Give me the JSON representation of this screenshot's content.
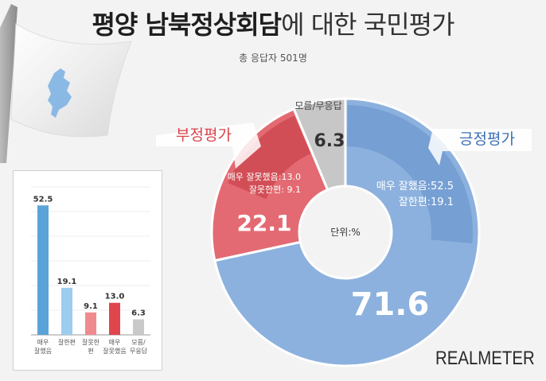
{
  "title": {
    "bold": "평양 남북정상회담",
    "rest": "에 대한 국민평가"
  },
  "subtitle": "총 응답자 501명",
  "brand": "REALMETER",
  "colors": {
    "positive_main": "#8cb1de",
    "positive_dark": "#6f99cf",
    "negative_main": "#e36a72",
    "negative_dark": "#cc454d",
    "unknown": "#c7c7c7",
    "mini_blue_dark": "#5aa3d8",
    "mini_blue_light": "#9ccdee",
    "mini_red_light": "#ef8a8f",
    "mini_red_dark": "#e0454d",
    "mini_gray": "#c9c9c9"
  },
  "chart_data": [
    {
      "type": "pie",
      "title": "",
      "unit_label": "단위:%",
      "slices": [
        {
          "name": "긍정평가",
          "value": 71.6,
          "label": "71.6",
          "details": [
            {
              "label": "매우 잘했음:52.5",
              "value": 52.5
            },
            {
              "label": "잘한편:19.1",
              "value": 19.1
            }
          ]
        },
        {
          "name": "부정평가",
          "value": 22.1,
          "label": "22.1",
          "details": [
            {
              "label": "매우 잘못했음:13.0",
              "value": 13.0
            },
            {
              "label": "잘못한편: 9.1",
              "value": 9.1
            }
          ]
        },
        {
          "name": "모름/무응답",
          "value": 6.3,
          "label": "6.3"
        }
      ]
    },
    {
      "type": "bar",
      "categories": [
        "매우\n잘했음",
        "잘한편",
        "잘못한\n편",
        "매우\n잘못했음",
        "모름/\n무응답"
      ],
      "values": [
        52.5,
        19.1,
        9.1,
        13.0,
        6.3
      ],
      "value_labels": [
        "52.5",
        "19.1",
        "9.1",
        "13.0",
        "6.3"
      ],
      "ylim": [
        0,
        60
      ]
    }
  ]
}
